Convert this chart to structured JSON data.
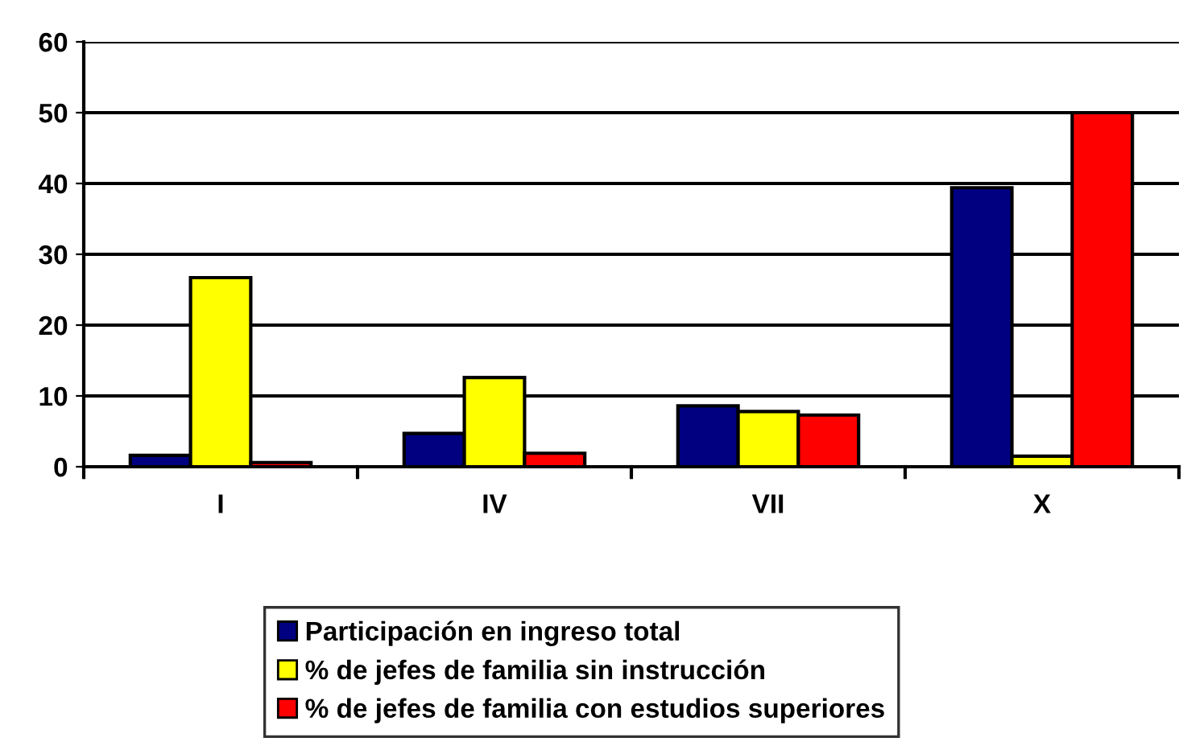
{
  "chart_data": {
    "type": "bar",
    "categories": [
      "I",
      "IV",
      "VII",
      "X"
    ],
    "series": [
      {
        "name": "Participación en ingreso total",
        "color": "#000080",
        "values": [
          1.6,
          4.7,
          8.6,
          39.4
        ]
      },
      {
        "name": "% de jefes de familia sin instrucción",
        "color": "#ffff00",
        "values": [
          26.7,
          12.6,
          7.8,
          1.5
        ]
      },
      {
        "name": "% de jefes de familia con estudios superiores",
        "color": "#ff0000",
        "values": [
          0.6,
          1.9,
          7.3,
          50
        ]
      }
    ],
    "ylim": [
      0,
      60
    ],
    "yticks": [
      0,
      10,
      20,
      30,
      40,
      50,
      60
    ],
    "grid": "y",
    "legend": "bottom"
  }
}
